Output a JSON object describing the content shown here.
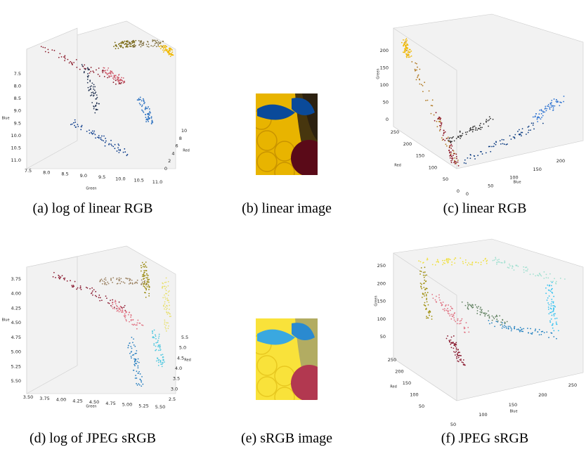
{
  "panels": [
    {
      "caption": "(a) log of linear RGB",
      "axes": {
        "x_label": "Green",
        "y_label": "Red",
        "z_label": "Blue",
        "x_ticks": [
          "7.5",
          "8.0",
          "8.5",
          "9.0",
          "9.5",
          "10.0",
          "10.5",
          "11.0"
        ],
        "y_ticks": [
          "0",
          "2",
          "4",
          "6",
          "8",
          "10"
        ],
        "z_ticks": [
          "7.5",
          "8.0",
          "8.5",
          "9.0",
          "9.5",
          "10.0",
          "10.5",
          "11.0"
        ]
      }
    },
    {
      "caption": "(b) linear image"
    },
    {
      "caption": "(c) linear RGB",
      "axes": {
        "x_label": "Blue",
        "y_label": "Red",
        "z_label": "Green",
        "x_ticks": [
          "0",
          "50",
          "100",
          "150",
          "200"
        ],
        "y_ticks": [
          "250",
          "200",
          "150",
          "100",
          "50",
          "0"
        ],
        "z_ticks": [
          "0",
          "50",
          "100",
          "150",
          "200"
        ]
      }
    },
    {
      "caption": "(d) log of JPEG sRGB",
      "axes": {
        "x_label": "Green",
        "y_label": "Red",
        "z_label": "Blue",
        "x_ticks": [
          "3.50",
          "3.75",
          "4.00",
          "4.25",
          "4.50",
          "4.75",
          "5.00",
          "5.25",
          "5.50"
        ],
        "y_ticks": [
          "2.5",
          "3.0",
          "3.5",
          "4.0",
          "4.5",
          "5.0",
          "5.5"
        ],
        "z_ticks": [
          "3.75",
          "4.00",
          "4.25",
          "4.50",
          "4.75",
          "5.00",
          "5.25",
          "5.50"
        ]
      }
    },
    {
      "caption": "(e) sRGB image"
    },
    {
      "caption": "(f) JPEG sRGB",
      "axes": {
        "x_label": "Blue",
        "y_label": "Red",
        "z_label": "Green",
        "x_ticks": [
          "50",
          "100",
          "150",
          "200",
          "250"
        ],
        "y_ticks": [
          "250",
          "200",
          "150",
          "100",
          "50"
        ],
        "z_ticks": [
          "50",
          "100",
          "150",
          "200",
          "250"
        ]
      }
    }
  ]
}
